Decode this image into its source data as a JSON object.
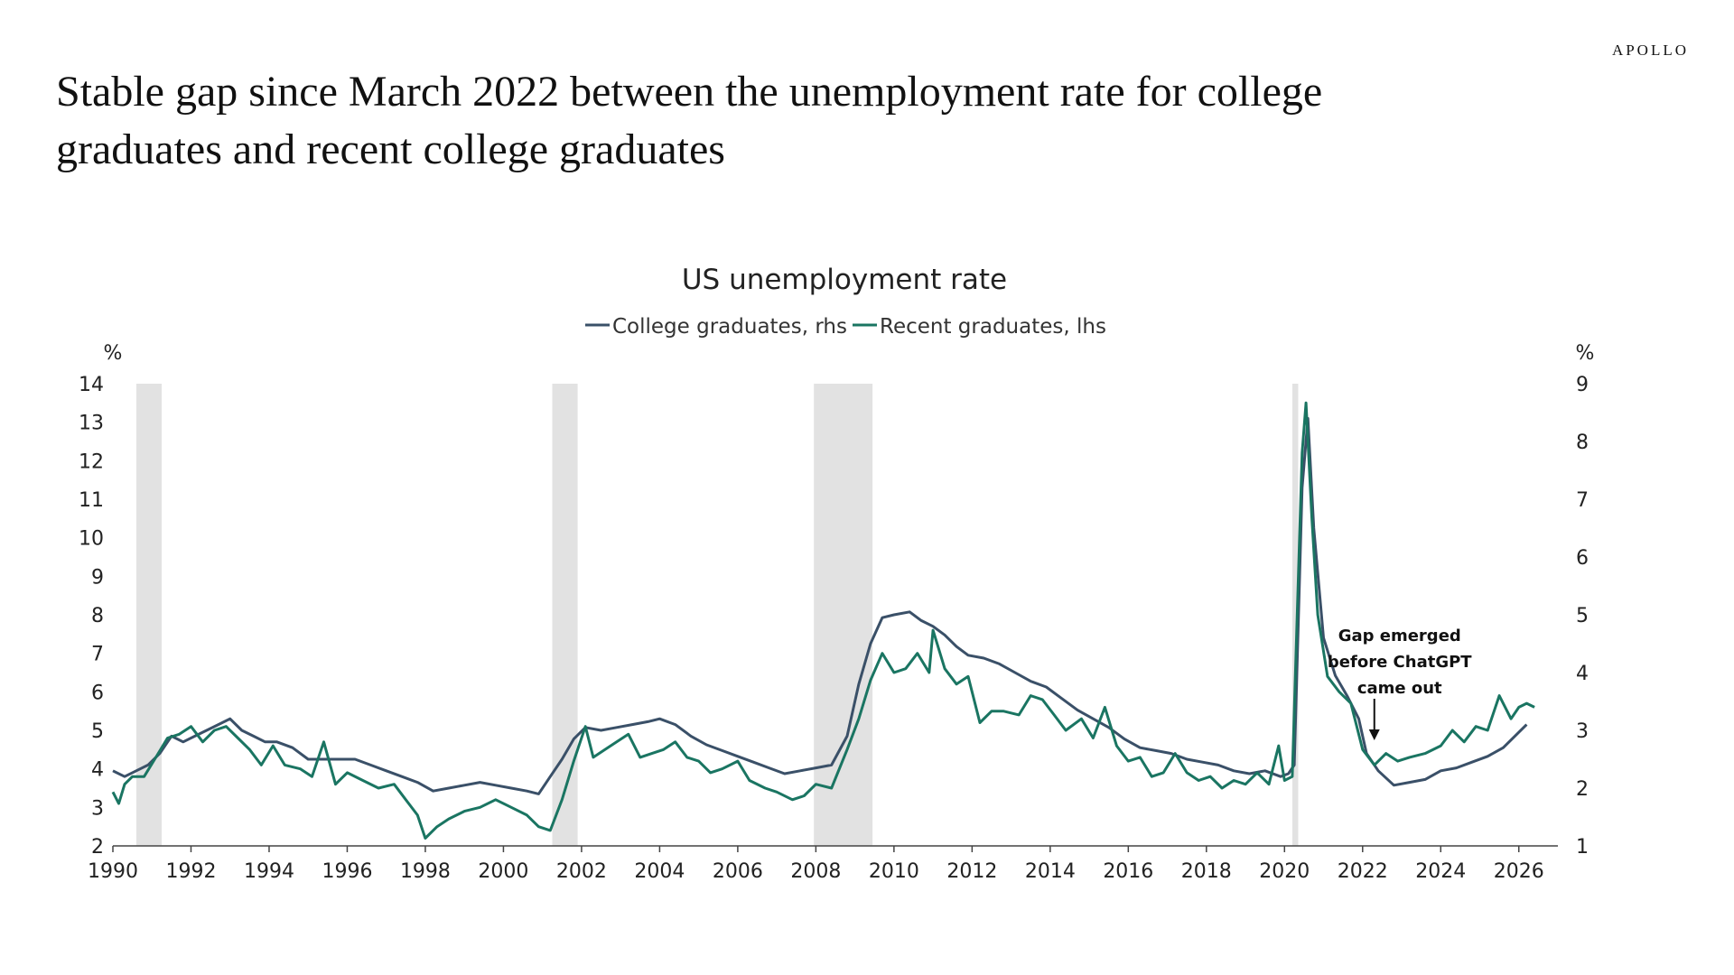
{
  "brand": "APOLLO",
  "headline": "Stable gap since March 2022 between the unemployment rate for college graduates and recent college graduates",
  "chart_data": {
    "type": "line",
    "title": "US unemployment rate",
    "left_axis_unit": "%",
    "right_axis_unit": "%",
    "x_ticks": [
      "1990",
      "1992",
      "1994",
      "1996",
      "1998",
      "2000",
      "2002",
      "2004",
      "2006",
      "2008",
      "2010",
      "2012",
      "2014",
      "2016",
      "2018",
      "2020",
      "2022",
      "2024",
      "2026"
    ],
    "xlim": [
      1990,
      2027
    ],
    "ylim_left": [
      2,
      14
    ],
    "ylim_right": [
      1,
      9
    ],
    "yticks_left": [
      "2",
      "3",
      "4",
      "5",
      "6",
      "7",
      "8",
      "9",
      "10",
      "11",
      "12",
      "13",
      "14"
    ],
    "yticks_right": [
      "1",
      "2",
      "3",
      "4",
      "5",
      "6",
      "7",
      "8",
      "9"
    ],
    "grid": false,
    "legend_position": "top-center",
    "recessions": [
      [
        1990.6,
        1991.25
      ],
      [
        2001.25,
        2001.9
      ],
      [
        2007.95,
        2009.45
      ],
      [
        2020.2,
        2020.35
      ]
    ],
    "annotation": {
      "lines": [
        "Gap emerged",
        "before ChatGPT",
        "came out"
      ],
      "x": 2022.3
    },
    "series": [
      {
        "name": "College graduates, rhs",
        "axis": "right",
        "color": "#3a5068",
        "points": [
          [
            1990.0,
            2.3
          ],
          [
            1990.3,
            2.2
          ],
          [
            1990.6,
            2.3
          ],
          [
            1990.9,
            2.4
          ],
          [
            1991.2,
            2.6
          ],
          [
            1991.5,
            2.9
          ],
          [
            1991.8,
            2.8
          ],
          [
            1992.1,
            2.9
          ],
          [
            1992.4,
            3.0
          ],
          [
            1992.7,
            3.1
          ],
          [
            1993.0,
            3.2
          ],
          [
            1993.3,
            3.0
          ],
          [
            1993.6,
            2.9
          ],
          [
            1993.9,
            2.8
          ],
          [
            1994.2,
            2.8
          ],
          [
            1994.6,
            2.7
          ],
          [
            1995.0,
            2.5
          ],
          [
            1995.4,
            2.5
          ],
          [
            1995.8,
            2.5
          ],
          [
            1996.2,
            2.5
          ],
          [
            1996.6,
            2.4
          ],
          [
            1997.0,
            2.3
          ],
          [
            1997.4,
            2.2
          ],
          [
            1997.8,
            2.1
          ],
          [
            1998.2,
            1.95
          ],
          [
            1998.6,
            2.0
          ],
          [
            1999.0,
            2.05
          ],
          [
            1999.4,
            2.1
          ],
          [
            1999.8,
            2.05
          ],
          [
            2000.2,
            2.0
          ],
          [
            2000.6,
            1.95
          ],
          [
            2000.9,
            1.9
          ],
          [
            2001.2,
            2.2
          ],
          [
            2001.5,
            2.5
          ],
          [
            2001.8,
            2.85
          ],
          [
            2002.1,
            3.05
          ],
          [
            2002.5,
            3.0
          ],
          [
            2002.9,
            3.05
          ],
          [
            2003.3,
            3.1
          ],
          [
            2003.7,
            3.15
          ],
          [
            2004.0,
            3.2
          ],
          [
            2004.4,
            3.1
          ],
          [
            2004.8,
            2.9
          ],
          [
            2005.2,
            2.75
          ],
          [
            2005.6,
            2.65
          ],
          [
            2006.0,
            2.55
          ],
          [
            2006.4,
            2.45
          ],
          [
            2006.8,
            2.35
          ],
          [
            2007.2,
            2.25
          ],
          [
            2007.6,
            2.3
          ],
          [
            2008.0,
            2.35
          ],
          [
            2008.4,
            2.4
          ],
          [
            2008.8,
            2.9
          ],
          [
            2009.1,
            3.8
          ],
          [
            2009.4,
            4.5
          ],
          [
            2009.7,
            4.95
          ],
          [
            2010.0,
            5.0
          ],
          [
            2010.4,
            5.05
          ],
          [
            2010.7,
            4.9
          ],
          [
            2011.0,
            4.8
          ],
          [
            2011.3,
            4.65
          ],
          [
            2011.6,
            4.45
          ],
          [
            2011.9,
            4.3
          ],
          [
            2012.3,
            4.25
          ],
          [
            2012.7,
            4.15
          ],
          [
            2013.1,
            4.0
          ],
          [
            2013.5,
            3.85
          ],
          [
            2013.9,
            3.75
          ],
          [
            2014.3,
            3.55
          ],
          [
            2014.7,
            3.35
          ],
          [
            2015.1,
            3.2
          ],
          [
            2015.5,
            3.05
          ],
          [
            2015.9,
            2.85
          ],
          [
            2016.3,
            2.7
          ],
          [
            2016.7,
            2.65
          ],
          [
            2017.1,
            2.6
          ],
          [
            2017.5,
            2.5
          ],
          [
            2017.9,
            2.45
          ],
          [
            2018.3,
            2.4
          ],
          [
            2018.7,
            2.3
          ],
          [
            2019.1,
            2.25
          ],
          [
            2019.5,
            2.3
          ],
          [
            2019.9,
            2.2
          ],
          [
            2020.1,
            2.25
          ],
          [
            2020.25,
            2.4
          ],
          [
            2020.45,
            7.2
          ],
          [
            2020.6,
            8.4
          ],
          [
            2020.75,
            6.5
          ],
          [
            2021.0,
            4.6
          ],
          [
            2021.3,
            3.95
          ],
          [
            2021.6,
            3.6
          ],
          [
            2021.9,
            3.2
          ],
          [
            2022.1,
            2.6
          ],
          [
            2022.4,
            2.3
          ],
          [
            2022.8,
            2.05
          ],
          [
            2023.2,
            2.1
          ],
          [
            2023.6,
            2.15
          ],
          [
            2024.0,
            2.3
          ],
          [
            2024.4,
            2.35
          ],
          [
            2024.8,
            2.45
          ],
          [
            2025.2,
            2.55
          ],
          [
            2025.6,
            2.7
          ],
          [
            2025.9,
            2.9
          ],
          [
            2026.2,
            3.1
          ]
        ]
      },
      {
        "name": "Recent graduates, lhs",
        "axis": "left",
        "color": "#1a7562",
        "points": [
          [
            1990.0,
            3.4
          ],
          [
            1990.15,
            3.1
          ],
          [
            1990.3,
            3.6
          ],
          [
            1990.5,
            3.8
          ],
          [
            1990.8,
            3.8
          ],
          [
            1991.1,
            4.3
          ],
          [
            1991.4,
            4.8
          ],
          [
            1991.7,
            4.9
          ],
          [
            1992.0,
            5.1
          ],
          [
            1992.3,
            4.7
          ],
          [
            1992.6,
            5.0
          ],
          [
            1992.9,
            5.1
          ],
          [
            1993.2,
            4.8
          ],
          [
            1993.5,
            4.5
          ],
          [
            1993.8,
            4.1
          ],
          [
            1994.1,
            4.6
          ],
          [
            1994.4,
            4.1
          ],
          [
            1994.8,
            4.0
          ],
          [
            1995.1,
            3.8
          ],
          [
            1995.4,
            4.7
          ],
          [
            1995.7,
            3.6
          ],
          [
            1996.0,
            3.9
          ],
          [
            1996.4,
            3.7
          ],
          [
            1996.8,
            3.5
          ],
          [
            1997.2,
            3.6
          ],
          [
            1997.5,
            3.2
          ],
          [
            1997.8,
            2.8
          ],
          [
            1998.0,
            2.2
          ],
          [
            1998.3,
            2.5
          ],
          [
            1998.6,
            2.7
          ],
          [
            1999.0,
            2.9
          ],
          [
            1999.4,
            3.0
          ],
          [
            1999.8,
            3.2
          ],
          [
            2000.2,
            3.0
          ],
          [
            2000.6,
            2.8
          ],
          [
            2000.9,
            2.5
          ],
          [
            2001.2,
            2.4
          ],
          [
            2001.5,
            3.2
          ],
          [
            2001.8,
            4.2
          ],
          [
            2002.1,
            5.1
          ],
          [
            2002.3,
            4.3
          ],
          [
            2002.6,
            4.5
          ],
          [
            2002.9,
            4.7
          ],
          [
            2003.2,
            4.9
          ],
          [
            2003.5,
            4.3
          ],
          [
            2003.8,
            4.4
          ],
          [
            2004.1,
            4.5
          ],
          [
            2004.4,
            4.7
          ],
          [
            2004.7,
            4.3
          ],
          [
            2005.0,
            4.2
          ],
          [
            2005.3,
            3.9
          ],
          [
            2005.6,
            4.0
          ],
          [
            2006.0,
            4.2
          ],
          [
            2006.3,
            3.7
          ],
          [
            2006.7,
            3.5
          ],
          [
            2007.0,
            3.4
          ],
          [
            2007.4,
            3.2
          ],
          [
            2007.7,
            3.3
          ],
          [
            2008.0,
            3.6
          ],
          [
            2008.4,
            3.5
          ],
          [
            2008.8,
            4.5
          ],
          [
            2009.1,
            5.3
          ],
          [
            2009.4,
            6.3
          ],
          [
            2009.7,
            7.0
          ],
          [
            2010.0,
            6.5
          ],
          [
            2010.3,
            6.6
          ],
          [
            2010.6,
            7.0
          ],
          [
            2010.9,
            6.5
          ],
          [
            2011.0,
            7.6
          ],
          [
            2011.3,
            6.6
          ],
          [
            2011.6,
            6.2
          ],
          [
            2011.9,
            6.4
          ],
          [
            2012.2,
            5.2
          ],
          [
            2012.5,
            5.5
          ],
          [
            2012.8,
            5.5
          ],
          [
            2013.2,
            5.4
          ],
          [
            2013.5,
            5.9
          ],
          [
            2013.8,
            5.8
          ],
          [
            2014.1,
            5.4
          ],
          [
            2014.4,
            5.0
          ],
          [
            2014.8,
            5.3
          ],
          [
            2015.1,
            4.8
          ],
          [
            2015.4,
            5.6
          ],
          [
            2015.7,
            4.6
          ],
          [
            2016.0,
            4.2
          ],
          [
            2016.3,
            4.3
          ],
          [
            2016.6,
            3.8
          ],
          [
            2016.9,
            3.9
          ],
          [
            2017.2,
            4.4
          ],
          [
            2017.5,
            3.9
          ],
          [
            2017.8,
            3.7
          ],
          [
            2018.1,
            3.8
          ],
          [
            2018.4,
            3.5
          ],
          [
            2018.7,
            3.7
          ],
          [
            2019.0,
            3.6
          ],
          [
            2019.3,
            3.9
          ],
          [
            2019.6,
            3.6
          ],
          [
            2019.85,
            4.6
          ],
          [
            2020.0,
            3.7
          ],
          [
            2020.2,
            3.8
          ],
          [
            2020.45,
            12.2
          ],
          [
            2020.55,
            13.5
          ],
          [
            2020.7,
            10.5
          ],
          [
            2020.85,
            8.0
          ],
          [
            2021.1,
            6.4
          ],
          [
            2021.4,
            6.0
          ],
          [
            2021.7,
            5.7
          ],
          [
            2022.0,
            4.5
          ],
          [
            2022.3,
            4.1
          ],
          [
            2022.6,
            4.4
          ],
          [
            2022.9,
            4.2
          ],
          [
            2023.2,
            4.3
          ],
          [
            2023.6,
            4.4
          ],
          [
            2024.0,
            4.6
          ],
          [
            2024.3,
            5.0
          ],
          [
            2024.6,
            4.7
          ],
          [
            2024.9,
            5.1
          ],
          [
            2025.2,
            5.0
          ],
          [
            2025.5,
            5.9
          ],
          [
            2025.8,
            5.3
          ],
          [
            2026.0,
            5.6
          ],
          [
            2026.2,
            5.7
          ],
          [
            2026.4,
            5.6
          ]
        ]
      }
    ]
  }
}
